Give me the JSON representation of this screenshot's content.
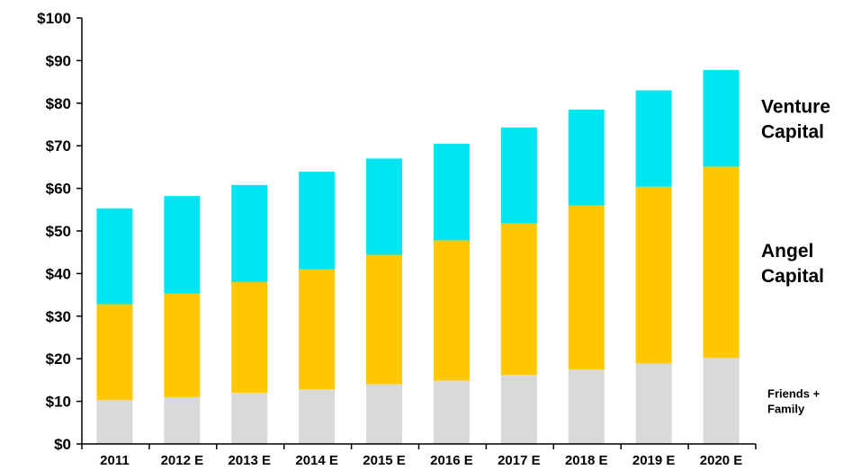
{
  "chart_data": {
    "type": "bar",
    "stacked": true,
    "title": "",
    "xlabel": "",
    "ylabel": "",
    "ylim": [
      0,
      100
    ],
    "yticks": [
      "$0",
      "$10",
      "$20",
      "$30",
      "$40",
      "$50",
      "$60",
      "$70",
      "$80",
      "$90",
      "$100"
    ],
    "categories": [
      "2011",
      "2012 E",
      "2013 E",
      "2014 E",
      "2015 E",
      "2016 E",
      "2017 E",
      "2018 E",
      "2019 E",
      "2020 E"
    ],
    "grid": false,
    "legend_placement": "right, labels beside top bar segments",
    "series": [
      {
        "name": "Friends + Family",
        "label_lines": [
          "Friends +",
          "Family"
        ],
        "color": "#d9d9d9",
        "values": [
          10.3,
          11,
          12,
          12.8,
          14,
          14.9,
          16.2,
          17.5,
          18.9,
          20.2
        ]
      },
      {
        "name": "Angel Capital",
        "label_lines": [
          "Angel",
          "Capital"
        ],
        "color": "#ffc800",
        "values": [
          22.5,
          24.3,
          26,
          28.2,
          30.4,
          32.9,
          35.6,
          38.5,
          41.5,
          44.9
        ]
      },
      {
        "name": "Venture Capital",
        "label_lines": [
          "Venture",
          "Capital"
        ],
        "color": "#00e5f0",
        "values": [
          22.5,
          22.9,
          22.8,
          22.9,
          22.6,
          22.7,
          22.5,
          22.5,
          22.6,
          22.7
        ]
      }
    ]
  }
}
